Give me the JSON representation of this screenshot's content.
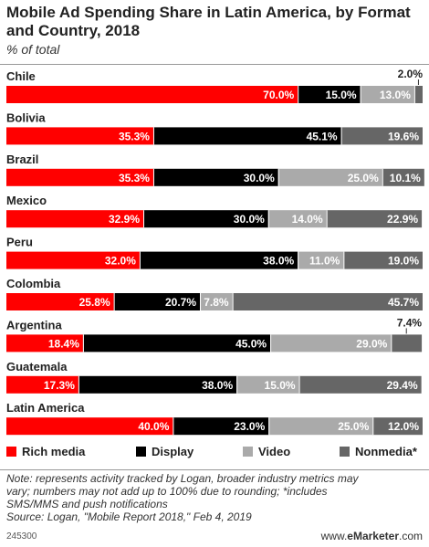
{
  "header": {
    "title": "Mobile Ad Spending Share in Latin America, by Format and Country, 2018",
    "subtitle": "% of total"
  },
  "colors": {
    "rich_media": "#ff0000",
    "display": "#000000",
    "video": "#aaaaaa",
    "nonmedia": "#666666"
  },
  "legend": {
    "rich_media": "Rich media",
    "display": "Display",
    "video": "Video",
    "nonmedia": "Nonmedia*"
  },
  "chart_data": {
    "type": "bar",
    "orientation": "horizontal",
    "stacked": true,
    "title": "Mobile Ad Spending Share in Latin America, by Format and Country, 2018",
    "subtitle": "% of total",
    "categories": [
      "Chile",
      "Bolivia",
      "Brazil",
      "Mexico",
      "Peru",
      "Colombia",
      "Argentina",
      "Guatemala",
      "Latin America"
    ],
    "series": [
      {
        "name": "Rich media",
        "color": "#ff0000",
        "values": [
          70.0,
          35.3,
          35.3,
          32.9,
          32.0,
          25.8,
          18.4,
          17.3,
          40.0
        ]
      },
      {
        "name": "Display",
        "color": "#000000",
        "values": [
          15.0,
          45.1,
          30.0,
          30.0,
          38.0,
          20.7,
          45.0,
          38.0,
          23.0
        ]
      },
      {
        "name": "Video",
        "color": "#aaaaaa",
        "values": [
          13.0,
          0,
          25.0,
          14.0,
          11.0,
          7.8,
          29.0,
          15.0,
          25.0
        ]
      },
      {
        "name": "Nonmedia*",
        "color": "#666666",
        "values": [
          2.0,
          19.6,
          10.1,
          22.9,
          19.0,
          45.7,
          7.4,
          29.4,
          12.0
        ]
      }
    ],
    "labels": [
      [
        "70.0%",
        "15.0%",
        "13.0%",
        "2.0%"
      ],
      [
        "35.3%",
        "45.1%",
        "",
        "19.6%"
      ],
      [
        "35.3%",
        "30.0%",
        "25.0%",
        "10.1%"
      ],
      [
        "32.9%",
        "30.0%",
        "14.0%",
        "22.9%"
      ],
      [
        "32.0%",
        "38.0%",
        "11.0%",
        "19.0%"
      ],
      [
        "25.8%",
        "20.7%",
        "7.8%",
        "45.7%"
      ],
      [
        "18.4%",
        "45.0%",
        "29.0%",
        "7.4%"
      ],
      [
        "17.3%",
        "38.0%",
        "15.0%",
        "29.4%"
      ],
      [
        "40.0%",
        "23.0%",
        "25.0%",
        "12.0%"
      ]
    ],
    "xlim": [
      0,
      100
    ],
    "legend_position": "bottom"
  },
  "footer": {
    "notes": [
      "Note: represents activity tracked by Logan, broader industry metrics may",
      "vary; numbers may not add up to 100% due to rounding; *includes",
      "SMS/MMS and push notifications"
    ],
    "source": "Source: Logan, \"Mobile Report 2018,\" Feb 4, 2019",
    "chart_id": "245300",
    "brand_prefix": "www.",
    "brand_name": "eMarketer",
    "brand_suffix": ".com"
  }
}
